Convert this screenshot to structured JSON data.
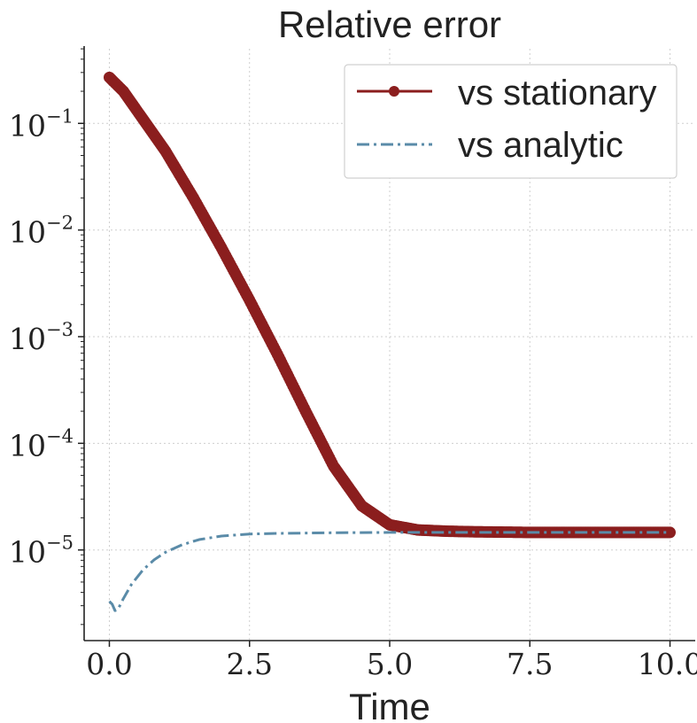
{
  "chart_data": {
    "type": "line",
    "title": "Relative error",
    "xlabel": "Time",
    "ylabel": "",
    "xlim": [
      -0.45,
      10.45
    ],
    "ylim_log10": [
      -5.85,
      -0.3
    ],
    "yscale": "log",
    "xticks": [
      0.0,
      2.5,
      5.0,
      7.5,
      10.0
    ],
    "xtick_labels": [
      "0.0",
      "2.5",
      "5.0",
      "7.5",
      "10.0"
    ],
    "yticks_log10": [
      -5,
      -4,
      -3,
      -2,
      -1
    ],
    "ytick_base": "10",
    "ytick_exps": [
      "−5",
      "−4",
      "−3",
      "−2",
      "−1"
    ],
    "grid": true,
    "legend_position": "top-right",
    "series": [
      {
        "name": "vs stationary",
        "color": "#8b1e1e",
        "style": "solid-with-markers",
        "x": [
          0.0,
          0.25,
          0.5,
          1.0,
          1.5,
          2.0,
          2.5,
          3.0,
          3.5,
          4.0,
          4.5,
          5.0,
          5.5,
          6.0,
          6.5,
          7.0,
          7.5,
          8.0,
          9.0,
          10.0
        ],
        "y": [
          0.27,
          0.2,
          0.13,
          0.055,
          0.02,
          0.0068,
          0.0022,
          0.00068,
          0.0002,
          6.1e-05,
          2.6e-05,
          1.72e-05,
          1.54e-05,
          1.5e-05,
          1.48e-05,
          1.47e-05,
          1.46e-05,
          1.46e-05,
          1.46e-05,
          1.46e-05
        ]
      },
      {
        "name": "vs analytic",
        "color": "#5a8ba8",
        "style": "dash-dot",
        "x": [
          0.0,
          0.05,
          0.1,
          0.15,
          0.25,
          0.4,
          0.6,
          0.8,
          1.0,
          1.3,
          1.6,
          2.0,
          2.5,
          3.0,
          4.0,
          5.0,
          6.0,
          7.0,
          8.0,
          9.0,
          10.0
        ],
        "y": [
          3.3e-06,
          3.1e-06,
          2.7e-06,
          2.75e-06,
          3.5e-06,
          4.8e-06,
          6.5e-06,
          8.1e-06,
          9.5e-06,
          1.12e-05,
          1.25e-05,
          1.35e-05,
          1.41e-05,
          1.43e-05,
          1.45e-05,
          1.46e-05,
          1.46e-05,
          1.46e-05,
          1.46e-05,
          1.46e-05,
          1.46e-05
        ]
      }
    ]
  }
}
